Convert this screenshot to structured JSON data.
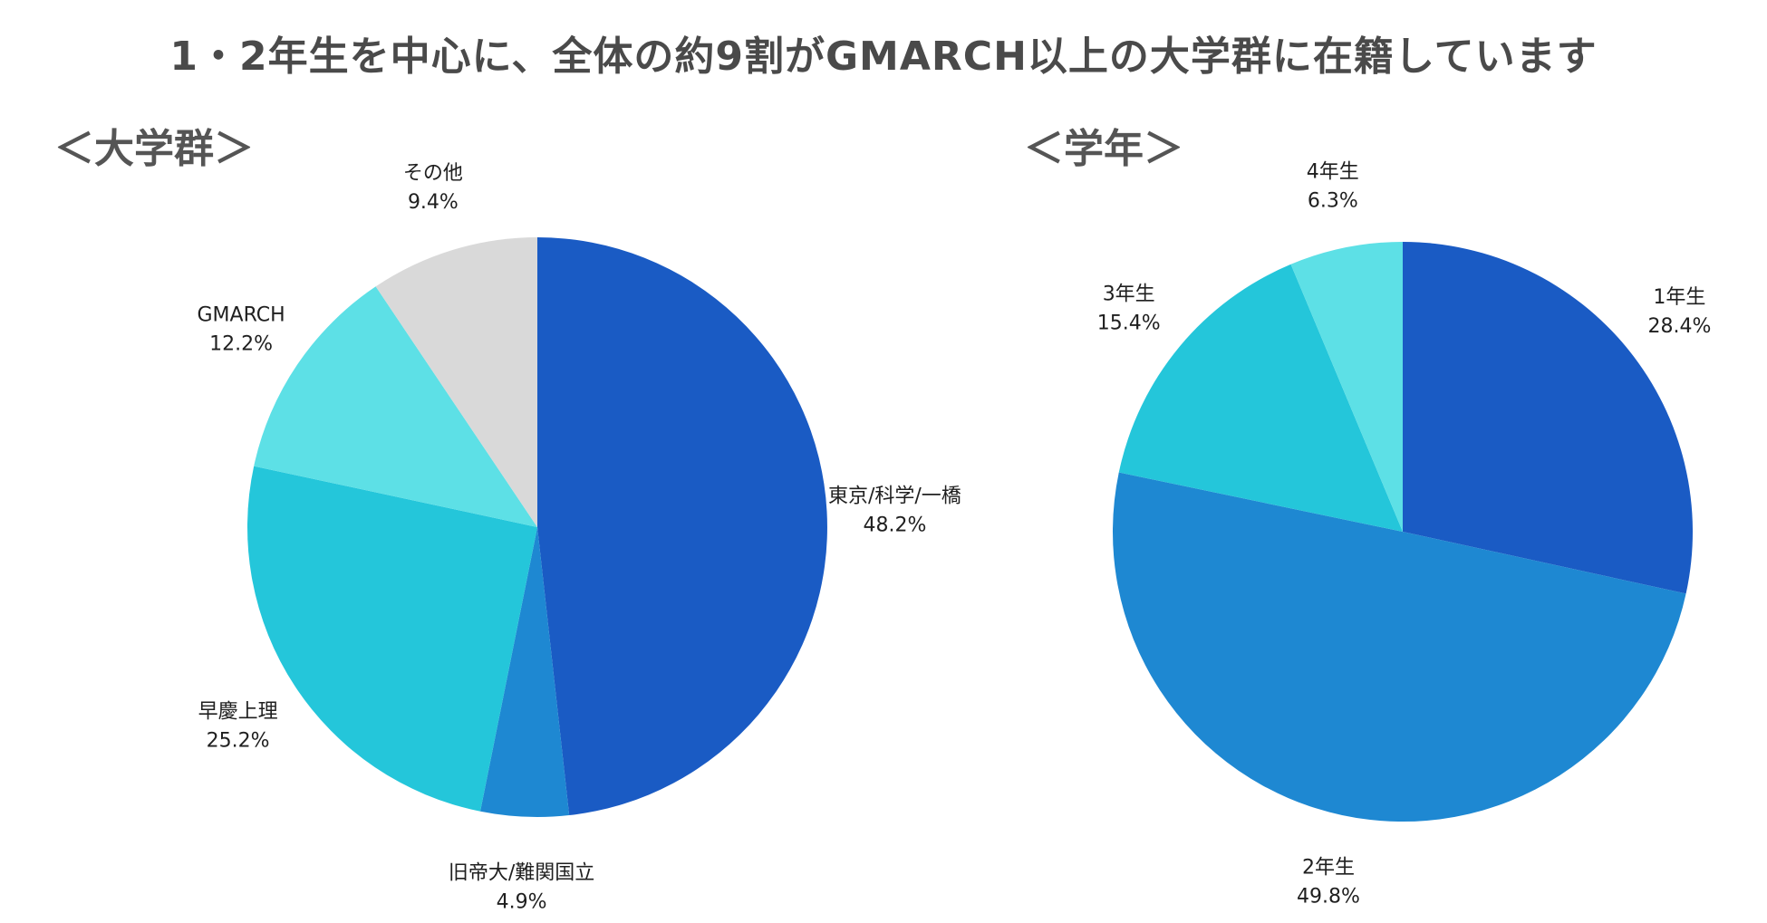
{
  "title": "1・2年生を中心に、全体の約9割がGMARCH以上の大学群に在籍しています",
  "chart_data": [
    {
      "type": "pie",
      "title": "＜大学群＞",
      "start_angle_deg": 0,
      "direction": "clockwise",
      "slices": [
        {
          "label": "東京/科学/一橋",
          "value": 48.2,
          "display": "48.2%",
          "color": "#1a5bc4"
        },
        {
          "label": "旧帝大/難関国立",
          "value": 4.9,
          "display": "4.9%",
          "color": "#1e88d2"
        },
        {
          "label": "早慶上理",
          "value": 25.2,
          "display": "25.2%",
          "color": "#24c6da"
        },
        {
          "label": "GMARCH",
          "value": 12.2,
          "display": "12.2%",
          "color": "#5de0e6"
        },
        {
          "label": "その他",
          "value": 9.4,
          "display": "9.4%",
          "color": "#d9d9d9"
        }
      ]
    },
    {
      "type": "pie",
      "title": "＜学年＞",
      "start_angle_deg": 0,
      "direction": "clockwise",
      "slices": [
        {
          "label": "1年生",
          "value": 28.4,
          "display": "28.4%",
          "color": "#1a5bc4"
        },
        {
          "label": "2年生",
          "value": 49.8,
          "display": "49.8%",
          "color": "#1e88d2"
        },
        {
          "label": "3年生",
          "value": 15.4,
          "display": "15.4%",
          "color": "#24c6da"
        },
        {
          "label": "4年生",
          "value": 6.3,
          "display": "6.3%",
          "color": "#5de0e6"
        }
      ]
    }
  ]
}
